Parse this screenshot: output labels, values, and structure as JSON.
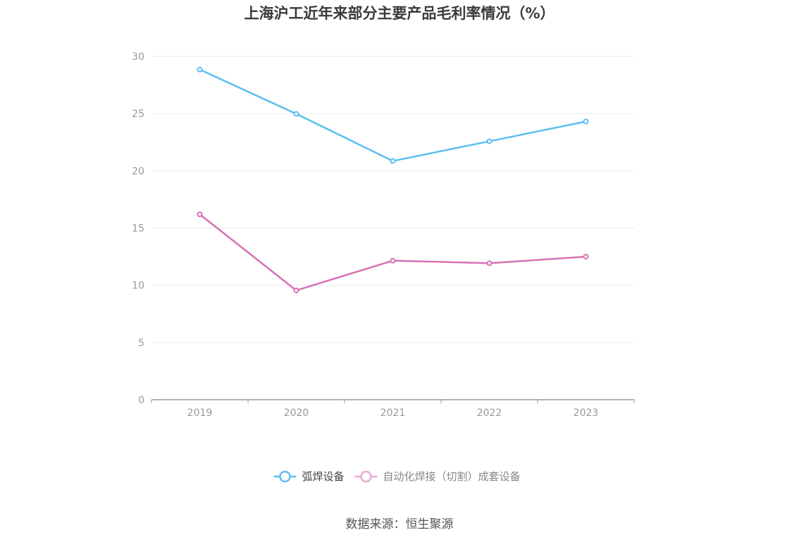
{
  "chart_data": {
    "type": "line",
    "title": "上海沪工近年来部分主要产品毛利率情况（%）",
    "categories": [
      "2019",
      "2020",
      "2021",
      "2022",
      "2023"
    ],
    "ylim": [
      0,
      30
    ],
    "yticks": [
      0,
      5,
      10,
      15,
      20,
      25,
      30
    ],
    "grid": true,
    "legend_position": "bottom",
    "series": [
      {
        "name": "弧焊设备",
        "color": "#5bbff0",
        "values": [
          28.85,
          24.98,
          20.86,
          22.58,
          24.31
        ]
      },
      {
        "name": "自动化焊接（切割）成套设备",
        "color": "#d671b4",
        "values": [
          16.2,
          9.55,
          12.15,
          11.93,
          12.5
        ]
      }
    ]
  },
  "source": "数据来源：恒生聚源"
}
